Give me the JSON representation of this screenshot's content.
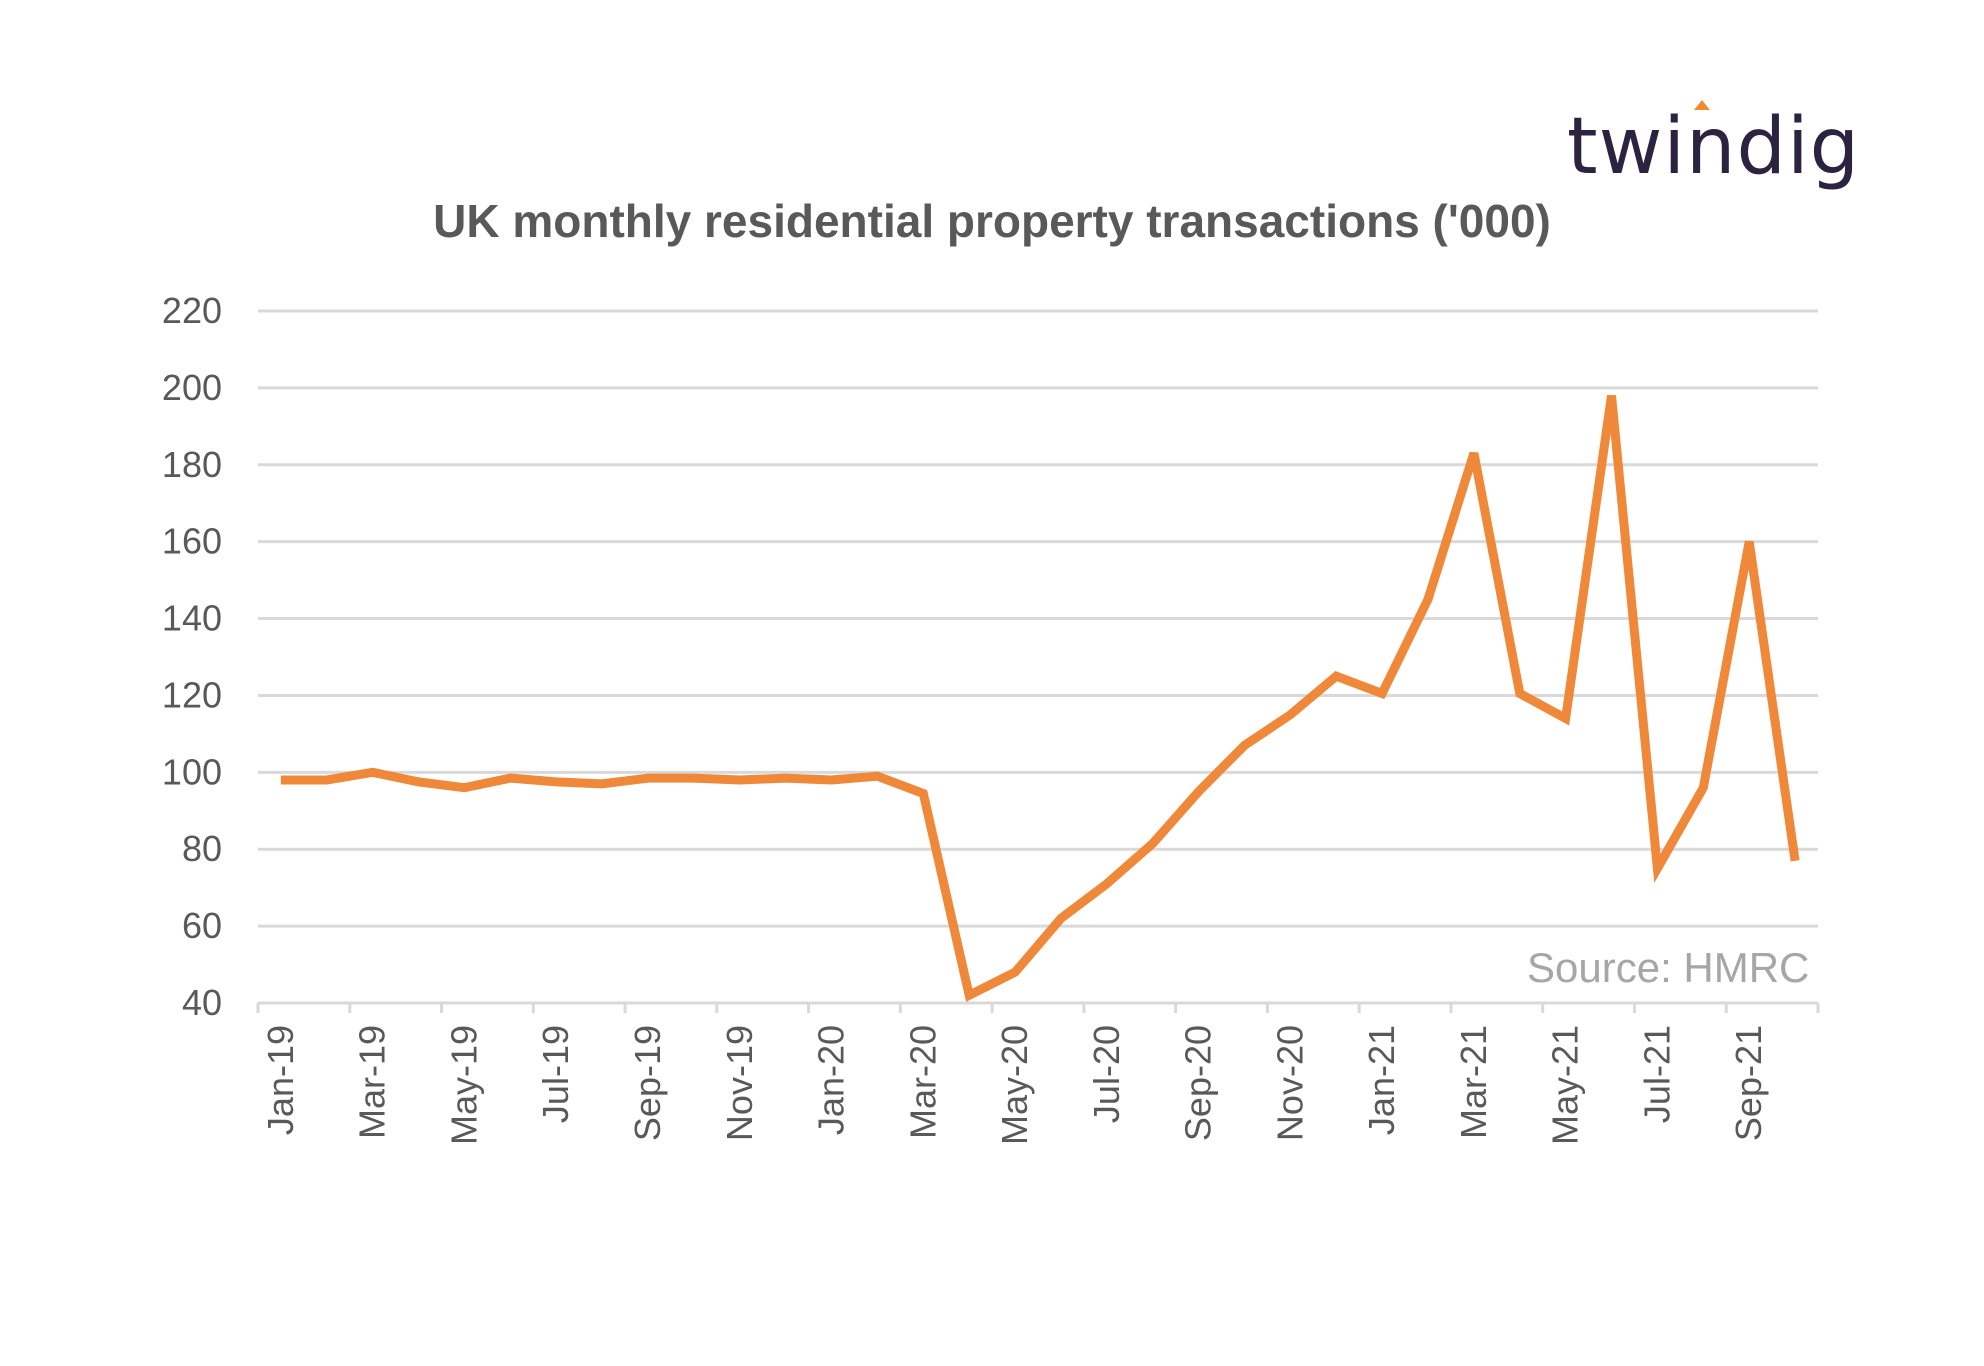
{
  "brand": {
    "logo_text": "twindig"
  },
  "chart_data": {
    "type": "line",
    "title": "UK monthly residential property transactions ('000)",
    "source": "Source: HMRC",
    "ylim": [
      40,
      220
    ],
    "yticks": [
      "220",
      "200",
      "180",
      "160",
      "140",
      "120",
      "100",
      "80",
      "60",
      "40"
    ],
    "xtick_labels": [
      "Jan-19",
      "Mar-19",
      "May-19",
      "Jul-19",
      "Sep-19",
      "Nov-19",
      "Jan-20",
      "Mar-20",
      "May-20",
      "Jul-20",
      "Sep-20",
      "Nov-20",
      "Jan-21",
      "Mar-21",
      "May-21",
      "Jul-21",
      "Sep-21"
    ],
    "grid": true,
    "legend": "none",
    "colors": {
      "line": "#f0883a",
      "grid": "#d9d9d9",
      "text": "#595959"
    },
    "series": [
      {
        "categories": [
          "Jan-19",
          "Feb-19",
          "Mar-19",
          "Apr-19",
          "May-19",
          "Jun-19",
          "Jul-19",
          "Aug-19",
          "Sep-19",
          "Oct-19",
          "Nov-19",
          "Dec-19",
          "Jan-20",
          "Feb-20",
          "Mar-20",
          "Apr-20",
          "May-20",
          "Jun-20",
          "Jul-20",
          "Aug-20",
          "Sep-20",
          "Oct-20",
          "Nov-20",
          "Dec-20",
          "Jan-21",
          "Feb-21",
          "Mar-21",
          "Apr-21",
          "May-21",
          "Jun-21",
          "Jul-21",
          "Aug-21",
          "Sep-21",
          "Oct-21"
        ],
        "values": [
          98,
          98,
          100,
          97.5,
          96,
          98.5,
          97.5,
          97,
          98.5,
          98.5,
          98,
          98.5,
          98,
          99,
          94.5,
          42,
          48,
          62,
          71,
          81.5,
          95,
          107,
          115,
          125,
          120.5,
          145,
          183,
          120.5,
          114,
          198,
          75,
          96,
          160,
          77
        ]
      }
    ]
  }
}
